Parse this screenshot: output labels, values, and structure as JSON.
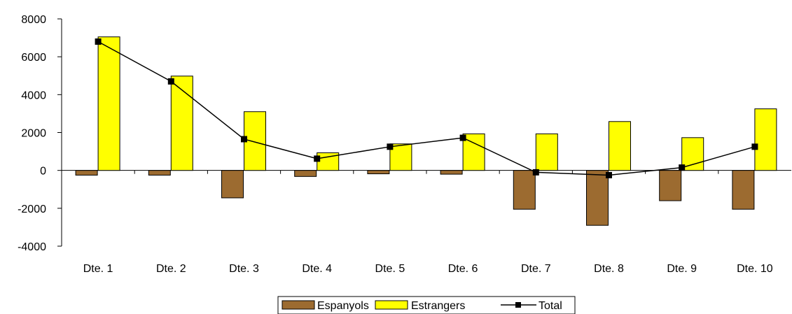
{
  "chart_data": {
    "type": "bar",
    "title": "",
    "xlabel": "",
    "ylabel": "",
    "categories": [
      "Dte. 1",
      "Dte. 2",
      "Dte. 3",
      "Dte. 4",
      "Dte. 5",
      "Dte. 6",
      "Dte. 7",
      "Dte. 8",
      "Dte. 9",
      "Dte. 10"
    ],
    "series": [
      {
        "name": "Espanyols",
        "type": "bar",
        "color": "#9C6B30",
        "values": [
          -250,
          -250,
          -1450,
          -320,
          -180,
          -200,
          -2050,
          -2900,
          -1600,
          -2050
        ]
      },
      {
        "name": "Estrangers",
        "type": "bar",
        "color": "#FFFF00",
        "values": [
          7050,
          4980,
          3100,
          930,
          1400,
          1930,
          1930,
          2580,
          1730,
          3250
        ]
      },
      {
        "name": "Total",
        "type": "line",
        "color": "#000000",
        "values": [
          6800,
          4700,
          1650,
          620,
          1250,
          1720,
          -100,
          -250,
          150,
          1250
        ]
      }
    ],
    "ylim": [
      -4000,
      8000
    ],
    "yticks": [
      -4000,
      -2000,
      0,
      2000,
      4000,
      6000,
      8000
    ],
    "grid": false,
    "legend_position": "bottom-center"
  }
}
